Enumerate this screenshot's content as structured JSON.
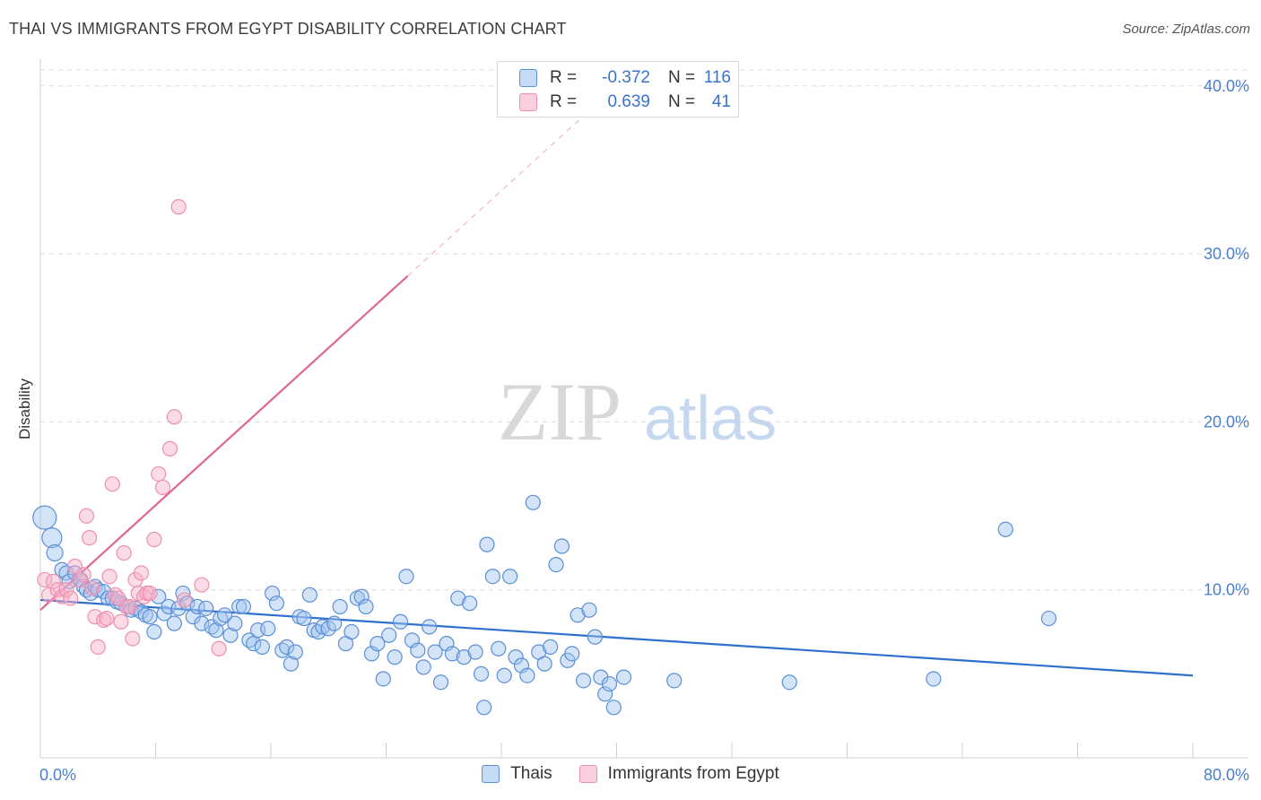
{
  "header": {
    "title": "THAI VS IMMIGRANTS FROM EGYPT DISABILITY CORRELATION CHART",
    "source": "Source: ZipAtlas.com"
  },
  "legend": {
    "rows": [
      {
        "r_label": "R =",
        "r_value": "-0.372",
        "n_label": "N =",
        "n_value": "116"
      },
      {
        "r_label": "R =",
        "r_value": "0.639",
        "n_label": "N =",
        "n_value": "41"
      }
    ]
  },
  "watermark": {
    "zip": "ZIP",
    "atlas": "atlas"
  },
  "bottom_legend": [
    "Thais",
    "Immigrants from Egypt"
  ],
  "colors": {
    "blue_fill": "rgba(160,196,240,0.45)",
    "blue_stroke": "#5b8fd6",
    "blue_line": "#2f6fce",
    "pink_fill": "rgba(246,176,200,0.45)",
    "pink_stroke": "#ee8fb0",
    "pink_line": "#e0668f",
    "tick_text": "#4a7fd0"
  },
  "chart_data": {
    "type": "scatter",
    "title": "THAI VS IMMIGRANTS FROM EGYPT DISABILITY CORRELATION CHART",
    "xlabel": "",
    "ylabel": "Disability",
    "xlim": [
      0,
      80
    ],
    "ylim": [
      0,
      40
    ],
    "x_tick_labels": [
      "0.0%",
      "80.0%"
    ],
    "y_tick_labels": [
      "10.0%",
      "20.0%",
      "30.0%",
      "40.0%"
    ],
    "y_ticks": [
      10,
      20,
      30,
      40
    ],
    "grid": true,
    "legend_position": "top-center",
    "series": [
      {
        "name": "Thais",
        "color": "blue",
        "trend": {
          "x": [
            0,
            80
          ],
          "y": [
            9.4,
            4.9
          ]
        },
        "points": [
          [
            0.3,
            14.3
          ],
          [
            0.8,
            13.1
          ],
          [
            1.0,
            12.2
          ],
          [
            1.5,
            11.2
          ],
          [
            1.8,
            11.0
          ],
          [
            2.0,
            10.5
          ],
          [
            2.4,
            11.0
          ],
          [
            2.8,
            10.6
          ],
          [
            3.0,
            10.2
          ],
          [
            3.2,
            10.0
          ],
          [
            3.5,
            9.8
          ],
          [
            3.8,
            10.2
          ],
          [
            4.0,
            10.0
          ],
          [
            4.4,
            9.9
          ],
          [
            4.7,
            9.5
          ],
          [
            5.0,
            9.5
          ],
          [
            5.3,
            9.3
          ],
          [
            5.6,
            9.2
          ],
          [
            6.0,
            9.0
          ],
          [
            6.3,
            8.8
          ],
          [
            6.6,
            8.9
          ],
          [
            7.0,
            8.7
          ],
          [
            7.3,
            8.5
          ],
          [
            7.6,
            8.4
          ],
          [
            7.9,
            7.5
          ],
          [
            8.2,
            9.6
          ],
          [
            8.6,
            8.6
          ],
          [
            8.9,
            9.0
          ],
          [
            9.3,
            8.0
          ],
          [
            9.6,
            8.9
          ],
          [
            9.9,
            9.8
          ],
          [
            10.2,
            9.2
          ],
          [
            10.6,
            8.4
          ],
          [
            10.9,
            9.0
          ],
          [
            11.2,
            8.0
          ],
          [
            11.5,
            8.9
          ],
          [
            11.9,
            7.8
          ],
          [
            12.2,
            7.6
          ],
          [
            12.5,
            8.3
          ],
          [
            12.8,
            8.5
          ],
          [
            13.2,
            7.3
          ],
          [
            13.5,
            8.0
          ],
          [
            13.8,
            9.0
          ],
          [
            14.1,
            9.0
          ],
          [
            14.5,
            7.0
          ],
          [
            14.8,
            6.8
          ],
          [
            15.1,
            7.6
          ],
          [
            15.4,
            6.6
          ],
          [
            15.8,
            7.7
          ],
          [
            16.1,
            9.8
          ],
          [
            16.4,
            9.2
          ],
          [
            16.8,
            6.4
          ],
          [
            17.1,
            6.6
          ],
          [
            17.4,
            5.6
          ],
          [
            17.7,
            6.3
          ],
          [
            18.0,
            8.4
          ],
          [
            18.3,
            8.3
          ],
          [
            18.7,
            9.7
          ],
          [
            19.0,
            7.6
          ],
          [
            19.3,
            7.5
          ],
          [
            19.6,
            7.8
          ],
          [
            20.0,
            7.7
          ],
          [
            20.4,
            8.0
          ],
          [
            20.8,
            9.0
          ],
          [
            21.2,
            6.8
          ],
          [
            21.6,
            7.5
          ],
          [
            22.0,
            9.5
          ],
          [
            22.3,
            9.6
          ],
          [
            22.6,
            9.0
          ],
          [
            23.0,
            6.2
          ],
          [
            23.4,
            6.8
          ],
          [
            23.8,
            4.7
          ],
          [
            24.2,
            7.3
          ],
          [
            24.6,
            6.0
          ],
          [
            25.0,
            8.1
          ],
          [
            25.4,
            10.8
          ],
          [
            25.8,
            7.0
          ],
          [
            26.2,
            6.4
          ],
          [
            26.6,
            5.4
          ],
          [
            27.0,
            7.8
          ],
          [
            27.4,
            6.3
          ],
          [
            27.8,
            4.5
          ],
          [
            28.2,
            6.8
          ],
          [
            28.6,
            6.2
          ],
          [
            29.0,
            9.5
          ],
          [
            29.4,
            6.0
          ],
          [
            29.8,
            9.2
          ],
          [
            30.2,
            6.3
          ],
          [
            30.6,
            5.0
          ],
          [
            30.8,
            3.0
          ],
          [
            31.0,
            12.7
          ],
          [
            31.4,
            10.8
          ],
          [
            31.8,
            6.5
          ],
          [
            32.2,
            4.9
          ],
          [
            32.6,
            10.8
          ],
          [
            33.0,
            6.0
          ],
          [
            33.4,
            5.5
          ],
          [
            33.8,
            4.9
          ],
          [
            34.2,
            15.2
          ],
          [
            34.6,
            6.3
          ],
          [
            35.0,
            5.6
          ],
          [
            35.4,
            6.6
          ],
          [
            35.8,
            11.5
          ],
          [
            36.2,
            12.6
          ],
          [
            36.6,
            5.8
          ],
          [
            36.9,
            6.2
          ],
          [
            37.3,
            8.5
          ],
          [
            37.7,
            4.6
          ],
          [
            38.1,
            8.8
          ],
          [
            38.5,
            7.2
          ],
          [
            38.9,
            4.8
          ],
          [
            39.2,
            3.8
          ],
          [
            39.5,
            4.4
          ],
          [
            39.8,
            3.0
          ],
          [
            40.5,
            4.8
          ],
          [
            44.0,
            4.6
          ],
          [
            52.0,
            4.5
          ],
          [
            62.0,
            4.7
          ],
          [
            67.0,
            13.6
          ],
          [
            70.0,
            8.3
          ]
        ]
      },
      {
        "name": "Immigrants from Egypt",
        "color": "pink",
        "trend": {
          "x": [
            0,
            40
          ],
          "y": [
            8.8,
            40
          ]
        },
        "points": [
          [
            0.3,
            10.6
          ],
          [
            0.6,
            9.7
          ],
          [
            0.9,
            10.5
          ],
          [
            1.2,
            10.0
          ],
          [
            1.5,
            9.6
          ],
          [
            1.8,
            10.0
          ],
          [
            2.1,
            9.5
          ],
          [
            2.4,
            11.4
          ],
          [
            2.7,
            10.6
          ],
          [
            3.0,
            10.9
          ],
          [
            3.2,
            14.4
          ],
          [
            3.4,
            13.1
          ],
          [
            3.6,
            10.1
          ],
          [
            3.8,
            8.4
          ],
          [
            4.0,
            6.6
          ],
          [
            4.4,
            8.2
          ],
          [
            4.6,
            8.3
          ],
          [
            4.8,
            10.8
          ],
          [
            5.0,
            16.3
          ],
          [
            5.2,
            9.7
          ],
          [
            5.4,
            9.5
          ],
          [
            5.6,
            8.1
          ],
          [
            5.8,
            12.2
          ],
          [
            6.0,
            9.0
          ],
          [
            6.2,
            9.0
          ],
          [
            6.4,
            7.1
          ],
          [
            6.6,
            10.6
          ],
          [
            6.8,
            9.8
          ],
          [
            7.0,
            11.0
          ],
          [
            7.2,
            9.6
          ],
          [
            7.4,
            9.8
          ],
          [
            7.6,
            9.8
          ],
          [
            7.9,
            13.0
          ],
          [
            8.2,
            16.9
          ],
          [
            8.5,
            16.1
          ],
          [
            9.0,
            18.4
          ],
          [
            9.3,
            20.3
          ],
          [
            9.6,
            32.8
          ],
          [
            10.0,
            9.4
          ],
          [
            11.2,
            10.3
          ],
          [
            12.4,
            6.5
          ]
        ]
      }
    ]
  }
}
